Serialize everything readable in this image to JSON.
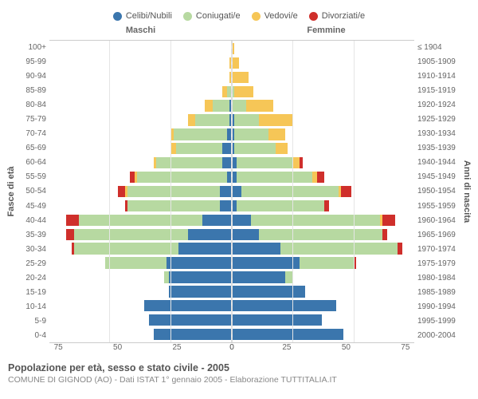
{
  "type": "population-pyramid",
  "legend": [
    {
      "label": "Celibi/Nubili",
      "color": "#3b76ad"
    },
    {
      "label": "Coniugati/e",
      "color": "#b7d9a1"
    },
    {
      "label": "Vedovi/e",
      "color": "#f6c657"
    },
    {
      "label": "Divorziati/e",
      "color": "#cf2f2b"
    }
  ],
  "header_male": "Maschi",
  "header_female": "Femmine",
  "y_left_title": "Fasce di età",
  "y_right_title": "Anni di nascita",
  "x_max": 75,
  "x_ticks": [
    0,
    25,
    50,
    75
  ],
  "age_labels": [
    "100+",
    "95-99",
    "90-94",
    "85-89",
    "80-84",
    "75-79",
    "70-74",
    "65-69",
    "60-64",
    "55-59",
    "50-54",
    "45-49",
    "40-44",
    "35-39",
    "30-34",
    "25-29",
    "20-24",
    "15-19",
    "10-14",
    "5-9",
    "0-4"
  ],
  "birth_labels": [
    "≤ 1904",
    "1905-1909",
    "1910-1914",
    "1915-1919",
    "1920-1924",
    "1925-1929",
    "1930-1934",
    "1935-1939",
    "1940-1944",
    "1945-1949",
    "1950-1954",
    "1955-1959",
    "1960-1964",
    "1965-1969",
    "1970-1974",
    "1975-1979",
    "1980-1984",
    "1985-1989",
    "1990-1994",
    "1995-1999",
    "2000-2004"
  ],
  "male": [
    [
      0,
      0,
      0,
      0
    ],
    [
      0,
      0,
      1,
      0
    ],
    [
      0,
      0,
      1,
      0
    ],
    [
      0,
      2,
      2,
      0
    ],
    [
      1,
      7,
      3,
      0
    ],
    [
      1,
      14,
      3,
      0
    ],
    [
      2,
      22,
      1,
      0
    ],
    [
      4,
      19,
      2,
      0
    ],
    [
      4,
      27,
      1,
      0
    ],
    [
      2,
      37,
      1,
      2
    ],
    [
      5,
      38,
      1,
      3
    ],
    [
      5,
      38,
      0,
      1
    ],
    [
      12,
      51,
      0,
      5
    ],
    [
      18,
      47,
      0,
      3
    ],
    [
      22,
      43,
      0,
      1
    ],
    [
      27,
      25,
      0,
      0
    ],
    [
      26,
      2,
      0,
      0
    ],
    [
      26,
      0,
      0,
      0
    ],
    [
      36,
      0,
      0,
      0
    ],
    [
      34,
      0,
      0,
      0
    ],
    [
      32,
      0,
      0,
      0
    ]
  ],
  "female": [
    [
      0,
      0,
      1,
      0
    ],
    [
      0,
      0,
      3,
      0
    ],
    [
      0,
      0,
      7,
      0
    ],
    [
      0,
      1,
      8,
      0
    ],
    [
      0,
      6,
      11,
      0
    ],
    [
      1,
      10,
      14,
      0
    ],
    [
      1,
      14,
      7,
      0
    ],
    [
      1,
      17,
      5,
      0
    ],
    [
      2,
      23,
      3,
      1
    ],
    [
      2,
      31,
      2,
      3
    ],
    [
      4,
      40,
      1,
      4
    ],
    [
      2,
      36,
      0,
      2
    ],
    [
      8,
      53,
      1,
      5
    ],
    [
      11,
      51,
      0,
      2
    ],
    [
      20,
      48,
      0,
      2
    ],
    [
      28,
      22,
      0,
      1
    ],
    [
      22,
      3,
      0,
      0
    ],
    [
      30,
      0,
      0,
      0
    ],
    [
      43,
      0,
      0,
      0
    ],
    [
      37,
      0,
      0,
      0
    ],
    [
      46,
      0,
      0,
      0
    ]
  ],
  "style": {
    "background": "#ffffff",
    "grid_color": "#e5e5e5",
    "text_color": "#666666",
    "title_fontsize": 12.5,
    "subtitle_fontsize": 10.5,
    "tick_fontsize": 10,
    "legend_fontsize": 11
  },
  "footer_title": "Popolazione per età, sesso e stato civile - 2005",
  "footer_sub": "COMUNE DI GIGNOD (AO) - Dati ISTAT 1° gennaio 2005 - Elaborazione TUTTITALIA.IT"
}
